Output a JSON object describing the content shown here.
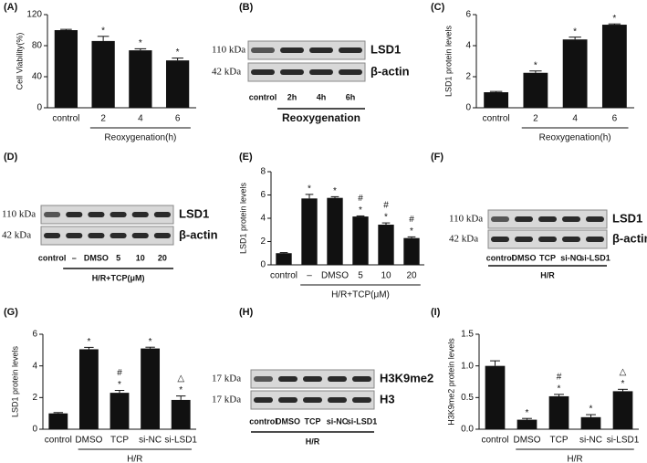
{
  "chart_data": [
    {
      "type": "bar",
      "panel": "(A)",
      "ylabel": "Cell Viability(%)",
      "xlabel": "Reoxygenation(h)",
      "categories": [
        "control",
        "2",
        "4",
        "6"
      ],
      "values": [
        100,
        86,
        74,
        61
      ],
      "errors": [
        1,
        6,
        2,
        3
      ],
      "ylim": [
        0,
        120
      ],
      "yticks": [
        0,
        40,
        80,
        120
      ],
      "color": "#111111",
      "annotations": [
        {
          "category": "2",
          "text": "*"
        },
        {
          "category": "4",
          "text": "*"
        },
        {
          "category": "6",
          "text": "*"
        }
      ]
    },
    {
      "type": "bar",
      "panel": "(C)",
      "ylabel": "LSD1 protein levels",
      "xlabel": "Reoxygenation(h)",
      "categories": [
        "control",
        "2",
        "4",
        "6"
      ],
      "values": [
        1.0,
        2.25,
        4.4,
        5.35
      ],
      "errors": [
        0.05,
        0.12,
        0.15,
        0.05
      ],
      "ylim": [
        0,
        6
      ],
      "yticks": [
        0,
        2,
        4,
        6
      ],
      "color": "#111111",
      "annotations": [
        {
          "category": "2",
          "text": "*"
        },
        {
          "category": "4",
          "text": "*"
        },
        {
          "category": "6",
          "text": "*"
        }
      ]
    },
    {
      "type": "bar",
      "panel": "(E)",
      "ylabel": "LSD1 protein levels",
      "xlabel": "H/R+TCP(μM)",
      "categories": [
        "control",
        "–",
        "DMSO",
        "5",
        "10",
        "20"
      ],
      "values": [
        1.0,
        5.7,
        5.75,
        4.15,
        3.45,
        2.3
      ],
      "errors": [
        0.05,
        0.35,
        0.1,
        0.05,
        0.15,
        0.1
      ],
      "ylim": [
        0,
        8
      ],
      "yticks": [
        0,
        2,
        4,
        6,
        8
      ],
      "color": "#111111",
      "annotations": [
        {
          "category": "–",
          "text": "*"
        },
        {
          "category": "DMSO",
          "text": "*"
        },
        {
          "category": "5",
          "text": "*"
        },
        {
          "category": "5",
          "text": "#"
        },
        {
          "category": "10",
          "text": "*"
        },
        {
          "category": "10",
          "text": "#"
        },
        {
          "category": "20",
          "text": "*"
        },
        {
          "category": "20",
          "text": "#"
        }
      ]
    },
    {
      "type": "bar",
      "panel": "(G)",
      "ylabel": "LSD1 protein levels",
      "xlabel": "H/R",
      "categories": [
        "control",
        "DMSO",
        "TCP",
        "si-NC",
        "si-LSD1"
      ],
      "values": [
        1.0,
        5.05,
        2.3,
        5.1,
        1.85
      ],
      "errors": [
        0.05,
        0.12,
        0.15,
        0.08,
        0.25
      ],
      "ylim": [
        0,
        6
      ],
      "yticks": [
        0,
        2,
        4,
        6
      ],
      "color": "#111111",
      "annotations": [
        {
          "category": "DMSO",
          "text": "*"
        },
        {
          "category": "TCP",
          "text": "*"
        },
        {
          "category": "TCP",
          "text": "#"
        },
        {
          "category": "si-NC",
          "text": "*"
        },
        {
          "category": "si-LSD1",
          "text": "*"
        },
        {
          "category": "si-LSD1",
          "text": "△"
        }
      ]
    },
    {
      "type": "bar",
      "panel": "(I)",
      "ylabel": "H3K9me2 protein levels",
      "xlabel": "H/R",
      "categories": [
        "control",
        "DMSO",
        "TCP",
        "si-NC",
        "si-LSD1"
      ],
      "values": [
        1.0,
        0.15,
        0.52,
        0.19,
        0.6
      ],
      "errors": [
        0.08,
        0.02,
        0.03,
        0.04,
        0.03
      ],
      "ylim": [
        0,
        1.5
      ],
      "yticks": [
        {
          "value": 0,
          "label": "0.0"
        },
        0.5,
        {
          "value": 1,
          "label": "1.0"
        },
        1.5
      ],
      "color": "#111111",
      "annotations": [
        {
          "category": "DMSO",
          "text": "*"
        },
        {
          "category": "TCP",
          "text": "*"
        },
        {
          "category": "TCP",
          "text": "#"
        },
        {
          "category": "si-NC",
          "text": "*"
        },
        {
          "category": "si-LSD1",
          "text": "*"
        },
        {
          "category": "si-LSD1",
          "text": "△"
        }
      ]
    }
  ],
  "blots": [
    {
      "panel": "(B)",
      "rows": [
        {
          "size": "110 kDa",
          "protein": "LSD1"
        },
        {
          "size": "42 kDa",
          "protein": "β-actin"
        }
      ],
      "lanes": [
        "control",
        "2h",
        "4h",
        "6h"
      ],
      "group": "Reoxygenation"
    },
    {
      "panel": "(D)",
      "rows": [
        {
          "size": "110 kDa",
          "protein": "LSD1"
        },
        {
          "size": "42 kDa",
          "protein": "β-actin"
        }
      ],
      "lanes": [
        "control",
        "–",
        "DMSO",
        "5",
        "10",
        "20"
      ],
      "group": "H/R+TCP(μM)"
    },
    {
      "panel": "(F)",
      "rows": [
        {
          "size": "110 kDa",
          "protein": "LSD1"
        },
        {
          "size": "42 kDa",
          "protein": "β-actin"
        }
      ],
      "lanes": [
        "control",
        "DMSO",
        "TCP",
        "si-NC",
        "si-LSD1"
      ],
      "group": "H/R"
    },
    {
      "panel": "(H)",
      "rows": [
        {
          "size": "17 kDa",
          "protein": "H3K9me2"
        },
        {
          "size": "17 kDa",
          "protein": "H3"
        }
      ],
      "lanes": [
        "control",
        "DMSO",
        "TCP",
        "si-NC",
        "si-LSD1"
      ],
      "group": "H/R"
    }
  ]
}
